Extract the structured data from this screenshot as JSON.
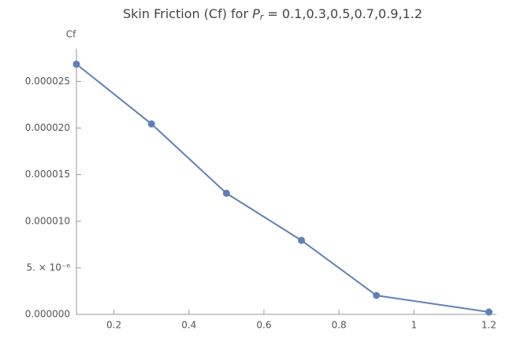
{
  "chart_data": {
    "type": "line",
    "title": [
      "Skin Friction (Cf) for ",
      "P",
      "r",
      " = 0.1,0.3,0.5,0.7,0.9,1.2"
    ],
    "y_label": "Cf",
    "x": [
      0.1,
      0.3,
      0.5,
      0.7,
      0.9,
      1.2
    ],
    "series": [
      {
        "name": "Cf",
        "color": "#5e81b5",
        "values": [
          2.686e-05,
          2.044e-05,
          1.3e-05,
          7.94e-06,
          2.03e-06,
          2.5e-07
        ]
      }
    ],
    "xlim": [
      0.1,
      1.22
    ],
    "ylim": [
      0,
      2.85e-05
    ],
    "xticks": [
      0.2,
      0.4,
      0.6,
      0.8,
      1.0,
      1.2
    ],
    "yticks": [
      {
        "value": 0,
        "label": "0.000000"
      },
      {
        "value": 5e-06,
        "label": "5. × 10⁻⁶"
      },
      {
        "value": 1e-05,
        "label": "0.000010"
      },
      {
        "value": 1.5e-05,
        "label": "0.000015"
      },
      {
        "value": 2e-05,
        "label": "0.000020"
      },
      {
        "value": 2.5e-05,
        "label": "0.000025"
      }
    ],
    "grid": false
  }
}
